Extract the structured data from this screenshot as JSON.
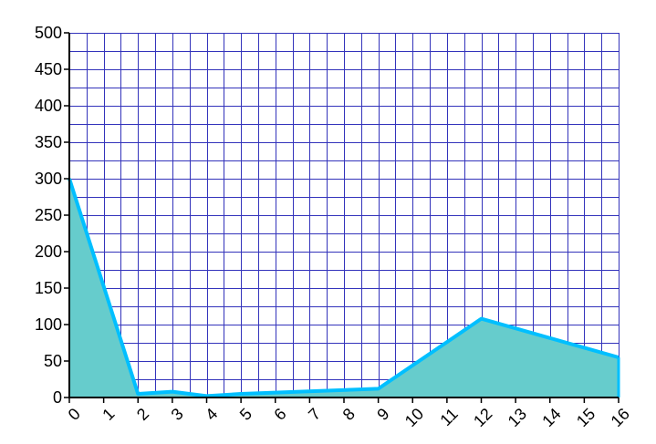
{
  "chart_data": {
    "type": "area",
    "title": "",
    "xlabel": "",
    "ylabel": "",
    "xlim": [
      0,
      16
    ],
    "ylim": [
      0,
      500
    ],
    "x_ticks": [
      0,
      1,
      2,
      3,
      4,
      5,
      6,
      7,
      8,
      9,
      10,
      11,
      12,
      13,
      14,
      15,
      16
    ],
    "y_ticks": [
      0,
      50,
      100,
      150,
      200,
      250,
      300,
      350,
      400,
      450,
      500
    ],
    "x_tick_labels": [
      "0",
      "1",
      "2",
      "3",
      "4",
      "5",
      "6",
      "7",
      "8",
      "9",
      "10",
      "11",
      "12",
      "13",
      "14",
      "15",
      "16"
    ],
    "y_tick_labels": [
      "0",
      "50",
      "100",
      "150",
      "200",
      "250",
      "300",
      "350",
      "400",
      "450",
      "500"
    ],
    "grid": true,
    "legend": "none",
    "series": [
      {
        "x": [
          0,
          2,
          3,
          4,
          5,
          9,
          12,
          16
        ],
        "y": [
          300,
          5,
          8,
          2,
          5,
          12,
          108,
          55
        ]
      }
    ],
    "colors": {
      "fill": "#66CCCC",
      "line": "#00BFFF",
      "grid": "#3333BB",
      "axis": "#000000"
    }
  }
}
